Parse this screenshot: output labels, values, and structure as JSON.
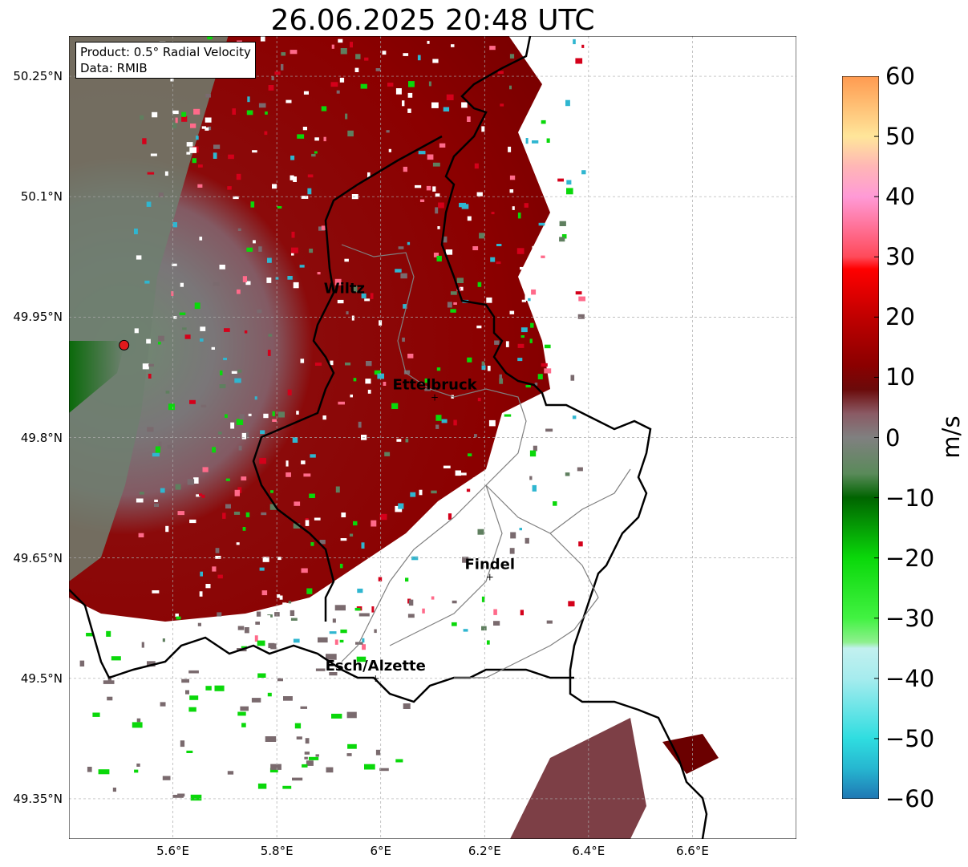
{
  "title": "26.06.2025 20:48 UTC",
  "info": {
    "product": "Product: 0.5° Radial Velocity",
    "data": "Data: RMIB"
  },
  "map": {
    "extent": {
      "lon_min": 5.4,
      "lon_max": 6.8,
      "lat_min": 49.3,
      "lat_max": 50.3
    },
    "lon_ticks": [
      {
        "v": 5.6,
        "label": "5.6°E"
      },
      {
        "v": 5.8,
        "label": "5.8°E"
      },
      {
        "v": 6.0,
        "label": "6°E"
      },
      {
        "v": 6.2,
        "label": "6.2°E"
      },
      {
        "v": 6.4,
        "label": "6.4°E"
      },
      {
        "v": 6.6,
        "label": "6.6°E"
      }
    ],
    "lat_ticks": [
      {
        "v": 50.25,
        "label": "50.25°N"
      },
      {
        "v": 50.1,
        "label": "50.1°N"
      },
      {
        "v": 49.95,
        "label": "49.95°N"
      },
      {
        "v": 49.8,
        "label": "49.8°N"
      },
      {
        "v": 49.65,
        "label": "49.65°N"
      },
      {
        "v": 49.5,
        "label": "49.5°N"
      },
      {
        "v": 49.35,
        "label": "49.35°N"
      }
    ],
    "radar_site": {
      "lon": 5.506,
      "lat": 49.915,
      "color": "#e31a1c"
    },
    "cities": [
      {
        "name": "Wiltz",
        "lon": 5.93,
        "lat": 49.97,
        "marker": false
      },
      {
        "name": "Ettelbruck",
        "lon": 6.104,
        "lat": 49.85,
        "marker": true
      },
      {
        "name": "Findel",
        "lon": 6.21,
        "lat": 49.626,
        "marker": true
      },
      {
        "name": "Esch/Alzette",
        "lon": 5.99,
        "lat": 49.5,
        "marker": true
      }
    ],
    "echo_colors": {
      "strong_outbound": "#8b0000",
      "weak": "#7a6a6e",
      "near_zero_green": "#5f7f5f",
      "inbound_green": "#0a7a0a"
    }
  },
  "colorbar": {
    "unit": "m/s",
    "min": -60,
    "max": 60,
    "ticks": [
      {
        "v": 60,
        "label": "60"
      },
      {
        "v": 50,
        "label": "50"
      },
      {
        "v": 40,
        "label": "40"
      },
      {
        "v": 30,
        "label": "30"
      },
      {
        "v": 20,
        "label": "20"
      },
      {
        "v": 10,
        "label": "10"
      },
      {
        "v": 0,
        "label": "0"
      },
      {
        "v": -10,
        "label": "−10"
      },
      {
        "v": -20,
        "label": "−20"
      },
      {
        "v": -30,
        "label": "−30"
      },
      {
        "v": -40,
        "label": "−40"
      },
      {
        "v": -50,
        "label": "−50"
      },
      {
        "v": -60,
        "label": "−60"
      }
    ],
    "stops": [
      {
        "v": -60,
        "c": "#1f77b4"
      },
      {
        "v": -55,
        "c": "#26b6d0"
      },
      {
        "v": -50,
        "c": "#2fdde0"
      },
      {
        "v": -40,
        "c": "#a6ecee"
      },
      {
        "v": -35,
        "c": "#c2f0ef"
      },
      {
        "v": -34,
        "c": "#8ef08e"
      },
      {
        "v": -30,
        "c": "#42f242"
      },
      {
        "v": -20,
        "c": "#0ad80a"
      },
      {
        "v": -10,
        "c": "#006400"
      },
      {
        "v": -6,
        "c": "#5a8a5a"
      },
      {
        "v": 0,
        "c": "#808080"
      },
      {
        "v": 4,
        "c": "#8a5a64"
      },
      {
        "v": 8,
        "c": "#6b0a0a"
      },
      {
        "v": 12,
        "c": "#8b0000"
      },
      {
        "v": 20,
        "c": "#c00000"
      },
      {
        "v": 28,
        "c": "#ff0000"
      },
      {
        "v": 30,
        "c": "#ff4a5a"
      },
      {
        "v": 40,
        "c": "#ff9ad6"
      },
      {
        "v": 45,
        "c": "#ffb6b6"
      },
      {
        "v": 50,
        "c": "#ffe69a"
      },
      {
        "v": 60,
        "c": "#ff9a50"
      }
    ]
  }
}
